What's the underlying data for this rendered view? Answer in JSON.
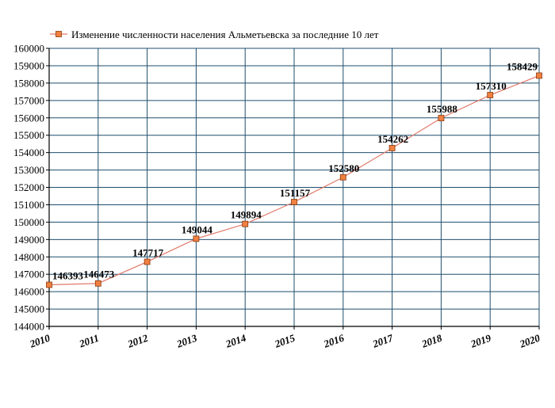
{
  "chart_data": {
    "type": "line",
    "legend": "Изменение численности населения Альметьевска за последние 10 лет",
    "legend_position": "top",
    "x": [
      "2010",
      "2011",
      "2012",
      "2013",
      "2014",
      "2015",
      "2016",
      "2017",
      "2018",
      "2019",
      "2020"
    ],
    "series": [
      {
        "name": "Изменение численности населения Альметьевска за последние 10 лет",
        "values": [
          146393,
          146473,
          147717,
          149044,
          149894,
          151157,
          152580,
          154262,
          155988,
          157310,
          158429
        ],
        "labels": [
          "146393",
          "146473",
          "147717",
          "149044",
          "149894",
          "151157",
          "152580",
          "154262",
          "155988",
          "157310",
          "158429"
        ],
        "line_color": "#e07a6a",
        "marker_color": "#f08040"
      }
    ],
    "y_ticks": [
      "144000",
      "145000",
      "146000",
      "147000",
      "148000",
      "149000",
      "150000",
      "151000",
      "152000",
      "153000",
      "154000",
      "155000",
      "156000",
      "157000",
      "158000",
      "159000",
      "160000"
    ],
    "ylim": [
      144000,
      160000
    ],
    "grid": true,
    "grid_color": "#1f4e6e"
  }
}
